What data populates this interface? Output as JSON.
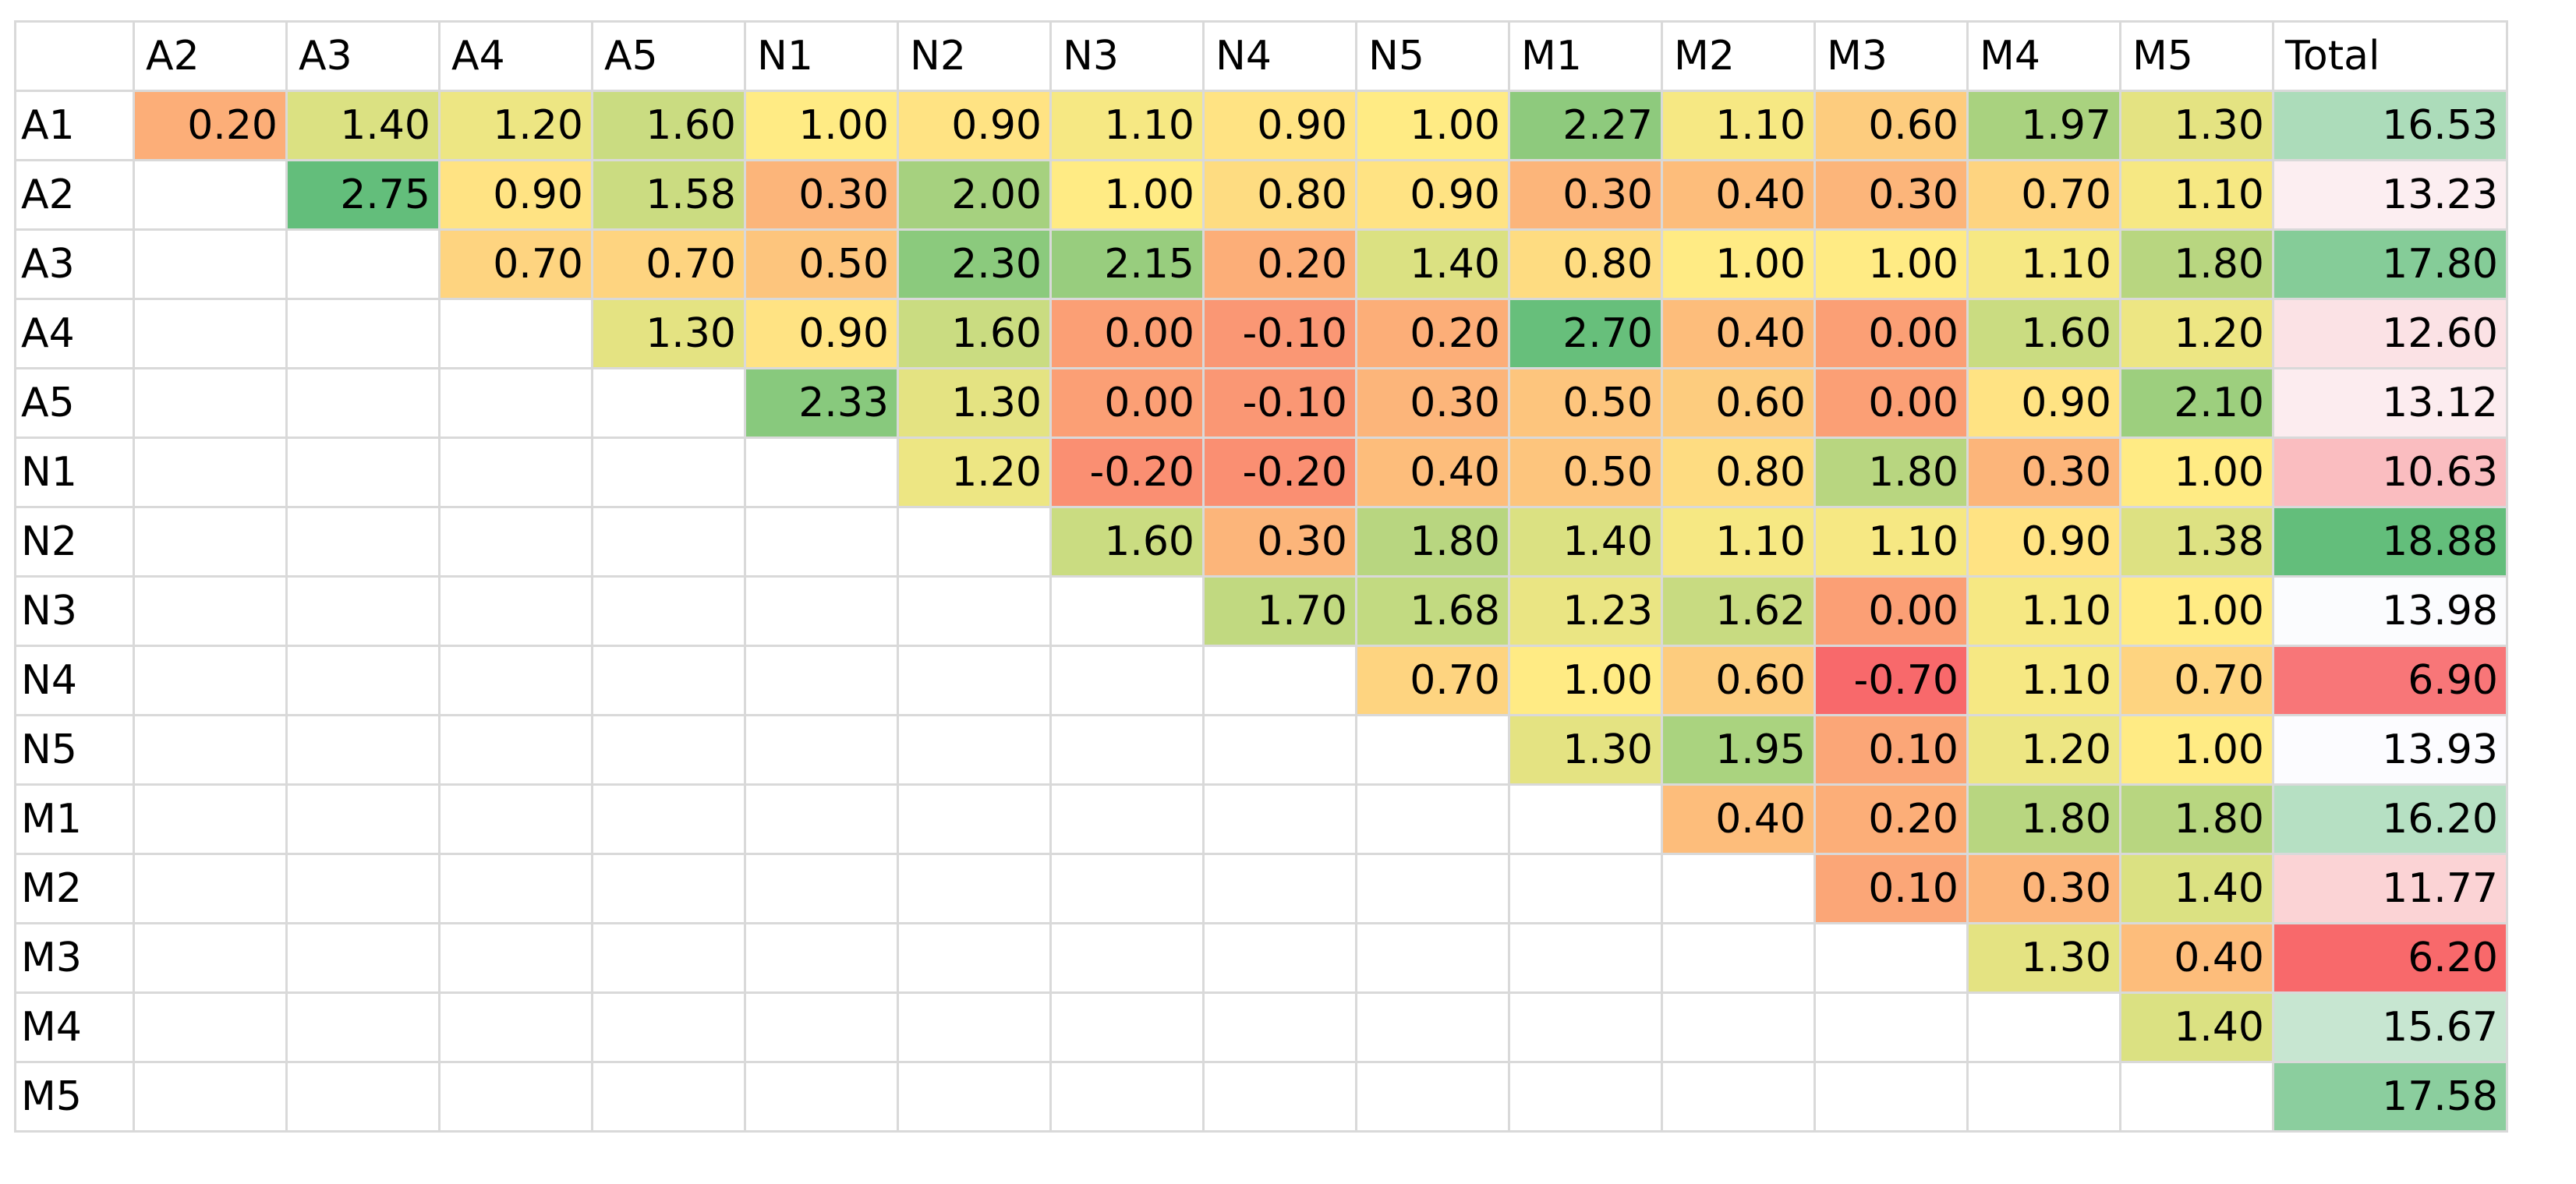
{
  "chart_data": {
    "type": "heatmap",
    "column_labels": [
      "A2",
      "A3",
      "A4",
      "A5",
      "N1",
      "N2",
      "N3",
      "N4",
      "N5",
      "M1",
      "M2",
      "M3",
      "M4",
      "M5",
      "Total"
    ],
    "row_labels": [
      "A1",
      "A2",
      "A3",
      "A4",
      "A5",
      "N1",
      "N2",
      "N3",
      "N4",
      "N5",
      "M1",
      "M2",
      "M3",
      "M4",
      "M5"
    ],
    "values": [
      [
        "0.20",
        "1.40",
        "1.20",
        "1.60",
        "1.00",
        "0.90",
        "1.10",
        "0.90",
        "1.00",
        "2.27",
        "1.10",
        "0.60",
        "1.97",
        "1.30"
      ],
      [
        null,
        "2.75",
        "0.90",
        "1.58",
        "0.30",
        "2.00",
        "1.00",
        "0.80",
        "0.90",
        "0.30",
        "0.40",
        "0.30",
        "0.70",
        "1.10"
      ],
      [
        null,
        null,
        "0.70",
        "0.70",
        "0.50",
        "2.30",
        "2.15",
        "0.20",
        "1.40",
        "0.80",
        "1.00",
        "1.00",
        "1.10",
        "1.80"
      ],
      [
        null,
        null,
        null,
        "1.30",
        "0.90",
        "1.60",
        "0.00",
        "-0.10",
        "0.20",
        "2.70",
        "0.40",
        "0.00",
        "1.60",
        "1.20"
      ],
      [
        null,
        null,
        null,
        null,
        "2.33",
        "1.30",
        "0.00",
        "-0.10",
        "0.30",
        "0.50",
        "0.60",
        "0.00",
        "0.90",
        "2.10"
      ],
      [
        null,
        null,
        null,
        null,
        null,
        "1.20",
        "-0.20",
        "-0.20",
        "0.40",
        "0.50",
        "0.80",
        "1.80",
        "0.30",
        "1.00"
      ],
      [
        null,
        null,
        null,
        null,
        null,
        null,
        "1.60",
        "0.30",
        "1.80",
        "1.40",
        "1.10",
        "1.10",
        "0.90",
        "1.38"
      ],
      [
        null,
        null,
        null,
        null,
        null,
        null,
        null,
        "1.70",
        "1.68",
        "1.23",
        "1.62",
        "0.00",
        "1.10",
        "1.00"
      ],
      [
        null,
        null,
        null,
        null,
        null,
        null,
        null,
        null,
        "0.70",
        "1.00",
        "0.60",
        "-0.70",
        "1.10",
        "0.70"
      ],
      [
        null,
        null,
        null,
        null,
        null,
        null,
        null,
        null,
        null,
        "1.30",
        "1.95",
        "0.10",
        "1.20",
        "1.00"
      ],
      [
        null,
        null,
        null,
        null,
        null,
        null,
        null,
        null,
        null,
        null,
        "0.40",
        "0.20",
        "1.80",
        "1.80"
      ],
      [
        null,
        null,
        null,
        null,
        null,
        null,
        null,
        null,
        null,
        null,
        null,
        "0.10",
        "0.30",
        "1.40"
      ],
      [
        null,
        null,
        null,
        null,
        null,
        null,
        null,
        null,
        null,
        null,
        null,
        null,
        "1.30",
        "0.40"
      ],
      [
        null,
        null,
        null,
        null,
        null,
        null,
        null,
        null,
        null,
        null,
        null,
        null,
        null,
        "1.40"
      ],
      [
        null,
        null,
        null,
        null,
        null,
        null,
        null,
        null,
        null,
        null,
        null,
        null,
        null,
        null
      ]
    ],
    "totals": [
      "16.53",
      "13.23",
      "17.80",
      "12.60",
      "13.12",
      "10.63",
      "18.88",
      "13.98",
      "6.90",
      "13.93",
      "16.20",
      "11.77",
      "6.20",
      "15.67",
      "17.58"
    ],
    "color_scale": {
      "cells": {
        "low": "#f8696b",
        "mid": "#ffeb84",
        "high": "#63be7b",
        "low_value": -0.7,
        "mid_value": 1.0,
        "high_value": 2.75
      },
      "totals": {
        "low": "#f8696b",
        "mid": "#fcfcff",
        "high": "#63be7b",
        "low_value": 6.2,
        "mid_value": 13.95,
        "high_value": 18.88
      }
    },
    "grid": true
  }
}
